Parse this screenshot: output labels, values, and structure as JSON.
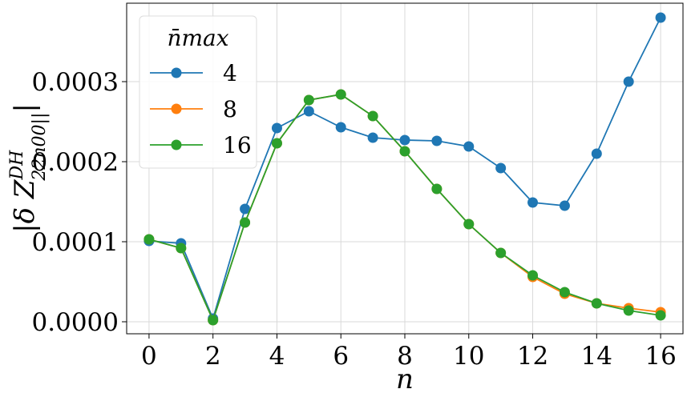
{
  "chart_data": {
    "type": "line",
    "title": "",
    "xlabel": "n",
    "ylabel_parts": {
      "base": "|δ Z",
      "sup": "DH",
      "sub": "22n00||",
      "close": "|"
    },
    "xlim": [
      -0.7,
      16.7
    ],
    "ylim": [
      -1.5e-05,
      0.000398
    ],
    "xticks": [
      0,
      2,
      4,
      6,
      8,
      10,
      12,
      14,
      16
    ],
    "xtick_labels": [
      "0",
      "2",
      "4",
      "6",
      "8",
      "10",
      "12",
      "14",
      "16"
    ],
    "yticks": [
      0.0,
      0.0001,
      0.0002,
      0.0003
    ],
    "ytick_labels": [
      "0.0000",
      "0.0001",
      "0.0002",
      "0.0003"
    ],
    "grid": true,
    "legend": {
      "title": "n̄max",
      "placement": "upper-left"
    },
    "x": [
      0,
      1,
      2,
      3,
      4,
      5,
      6,
      7,
      8,
      9,
      10,
      11,
      12,
      13,
      14,
      15,
      16
    ],
    "series": [
      {
        "name": "4",
        "color": "#1f77b4",
        "values": [
          0.000101,
          9.8e-05,
          4e-06,
          0.000141,
          0.000242,
          0.000263,
          0.000243,
          0.00023,
          0.000227,
          0.000226,
          0.000219,
          0.000192,
          0.000149,
          0.000145,
          0.00021,
          0.0003,
          0.00038
        ]
      },
      {
        "name": "8",
        "color": "#ff7f0e",
        "values": [
          0.000103,
          9.2e-05,
          2e-06,
          0.000124,
          0.000223,
          0.000277,
          0.000284,
          0.000257,
          0.000213,
          0.000166,
          0.000122,
          8.6e-05,
          5.6e-05,
          3.5e-05,
          2.3e-05,
          1.7e-05,
          1.2e-05
        ]
      },
      {
        "name": "16",
        "color": "#2ca02c",
        "values": [
          0.000103,
          9.2e-05,
          2e-06,
          0.000124,
          0.000223,
          0.000277,
          0.000284,
          0.000257,
          0.000213,
          0.000166,
          0.000122,
          8.6e-05,
          5.8e-05,
          3.7e-05,
          2.3e-05,
          1.4e-05,
          8e-06
        ]
      }
    ]
  }
}
